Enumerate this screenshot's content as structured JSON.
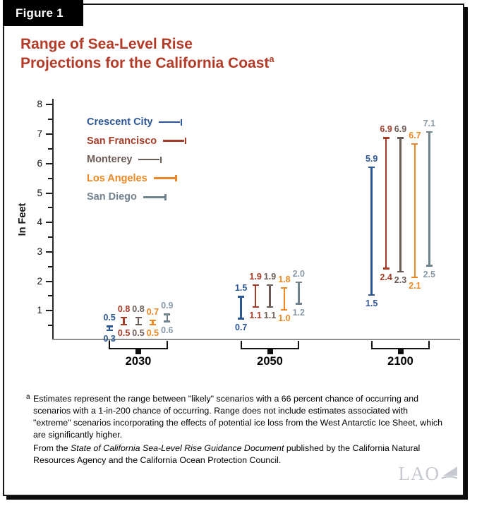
{
  "figure": {
    "label": "Figure 1"
  },
  "title": {
    "line1": "Range of Sea-Level Rise",
    "line2": "Projections for the California Coast",
    "superscript": "a"
  },
  "chart_data": {
    "type": "bar",
    "subtype": "floating-range-whiskers",
    "title": "Range of Sea-Level Rise Projections for the California Coast",
    "ylabel": "In Feet",
    "xlabel": "",
    "ylim": [
      0,
      8.2
    ],
    "ytick_major": [
      1,
      2,
      3,
      4,
      5,
      6,
      7,
      8
    ],
    "ytick_minor": [
      0.5,
      1.5,
      2.5,
      3.5,
      4.5,
      5.5,
      6.5,
      7.5
    ],
    "grid": false,
    "legend_position": "upper-left-inside",
    "categories": [
      "2030",
      "2050",
      "2100"
    ],
    "series": [
      {
        "name": "Crescent City",
        "color": "#2B5796",
        "ranges": [
          [
            0.3,
            0.5
          ],
          [
            0.7,
            1.5
          ],
          [
            1.5,
            5.9
          ]
        ]
      },
      {
        "name": "San Francisco",
        "color": "#A53C28",
        "ranges": [
          [
            0.5,
            0.8
          ],
          [
            1.1,
            1.9
          ],
          [
            2.4,
            6.9
          ]
        ]
      },
      {
        "name": "Monterey",
        "color": "#6B5B55",
        "ranges": [
          [
            0.5,
            0.8
          ],
          [
            1.1,
            1.9
          ],
          [
            2.3,
            6.9
          ]
        ]
      },
      {
        "name": "Los Angeles",
        "color": "#EC8723",
        "ranges": [
          [
            0.5,
            0.7
          ],
          [
            1.0,
            1.8
          ],
          [
            2.1,
            6.7
          ]
        ]
      },
      {
        "name": "San Diego",
        "color": "#71828F",
        "label_color": "#8A99A7",
        "ranges": [
          [
            0.6,
            0.9
          ],
          [
            1.2,
            2.0
          ],
          [
            2.5,
            7.1
          ]
        ]
      }
    ]
  },
  "notes": {
    "footnote_marker": "a",
    "footnote_text": "Estimates represent the range between \"likely\" scenarios with a 66 percent chance of occurring and scenarios with a 1-in-200 chance of occurring. Range does not include estimates associated with \"extreme\" scenarios incorporating the effects of potential ice loss from the West Antarctic Ice Sheet, which are significantly higher.",
    "source_prefix": "From the ",
    "source_title": "State of California Sea-Level Rise Guidance Document",
    "source_suffix": " published by the California Natural Resources Agency and the California Ocean Protection Council."
  },
  "branding": {
    "logo_text": "LAO"
  }
}
